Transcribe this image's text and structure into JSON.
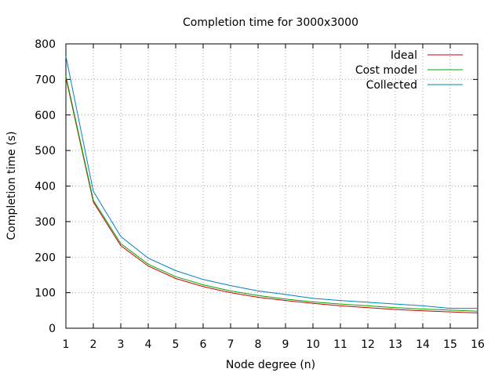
{
  "chart_data": {
    "type": "line",
    "title": "Completion time for 3000x3000",
    "xlabel": "Node degree (n)",
    "ylabel": "Completion time (s)",
    "xlim": [
      1,
      16
    ],
    "ylim": [
      0,
      800
    ],
    "xticks": [
      1,
      2,
      3,
      4,
      5,
      6,
      7,
      8,
      9,
      10,
      11,
      12,
      13,
      14,
      15,
      16
    ],
    "yticks": [
      0,
      100,
      200,
      300,
      400,
      500,
      600,
      700,
      800
    ],
    "grid": true,
    "legend_position": "top-right",
    "x": [
      1,
      2,
      3,
      4,
      5,
      6,
      7,
      8,
      9,
      10,
      11,
      12,
      13,
      14,
      15,
      16
    ],
    "series": [
      {
        "name": "Ideal",
        "color": "#cc0000",
        "values": [
          705,
          355,
          232,
          175,
          140,
          117,
          100,
          87,
          78,
          70,
          63,
          58,
          53,
          49,
          46,
          43
        ]
      },
      {
        "name": "Cost model",
        "color": "#00aa00",
        "values": [
          710,
          360,
          238,
          180,
          145,
          122,
          105,
          92,
          82,
          74,
          68,
          63,
          58,
          54,
          51,
          48
        ]
      },
      {
        "name": "Collected",
        "color": "#0080c0",
        "values": [
          765,
          385,
          258,
          197,
          162,
          137,
          120,
          105,
          95,
          84,
          78,
          73,
          68,
          63,
          56,
          56
        ]
      }
    ]
  }
}
